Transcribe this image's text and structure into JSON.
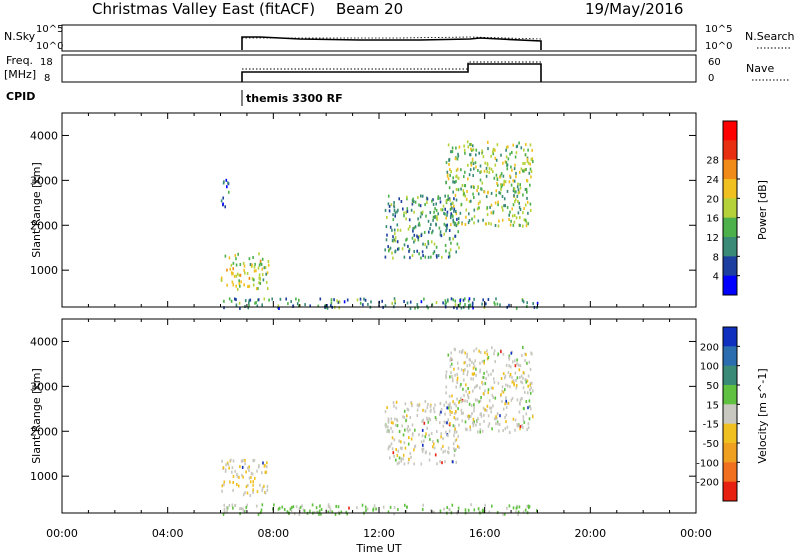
{
  "header": {
    "station": "Christmas Valley East (fitACF)",
    "beam": "Beam 20",
    "date": "19/May/2016"
  },
  "strips": {
    "nsky_label": "N.Sky",
    "nsky_ticks": [
      "10^5",
      "10^0"
    ],
    "nsearch_label": "N.Search",
    "freq_label": "Freq.",
    "freq_unit": "[MHz]",
    "freq_ticks": [
      "18",
      "8"
    ],
    "nave_label": "Nave",
    "nave_ticks": [
      "60",
      "0"
    ],
    "cpid_label": "CPID",
    "cpid_value": "themis 3300 RF",
    "nsearch_ticks": [
      "10^5",
      "10^0"
    ]
  },
  "chart_data": [
    {
      "type": "heatmap",
      "name": "power",
      "ylabel": "Slant Range [km]",
      "y_ticks": [
        "1000",
        "2000",
        "3000",
        "4000"
      ],
      "xlim_hours": [
        0,
        24
      ],
      "ylim_km": [
        180,
        4500
      ],
      "colorbar": {
        "label": "Power [dB]",
        "ticks": [
          "4",
          "8",
          "12",
          "16",
          "20",
          "24",
          "28"
        ],
        "colors": [
          "#0000ff",
          "#1d3f9f",
          "#3a8a78",
          "#4cb04b",
          "#b6d23a",
          "#f0c020",
          "#f08a18",
          "#e83010",
          "#ff0000"
        ]
      },
      "regions": [
        {
          "t0": 6.0,
          "t1": 7.8,
          "r0": 600,
          "r1": 1400,
          "value": 18
        },
        {
          "t0": 6.0,
          "t1": 6.3,
          "r0": 2400,
          "r1": 3100,
          "value": 8
        },
        {
          "t0": 14.5,
          "t1": 17.8,
          "r0": 2000,
          "r1": 3900,
          "value": 16
        },
        {
          "t0": 12.2,
          "t1": 15.0,
          "r0": 1300,
          "r1": 2700,
          "value": 12
        },
        {
          "t0": 6.0,
          "t1": 18.0,
          "r0": 180,
          "r1": 400,
          "value": 10
        }
      ]
    },
    {
      "type": "heatmap",
      "name": "velocity",
      "ylabel": "Slant Range [km]",
      "y_ticks": [
        "1000",
        "2000",
        "3000",
        "4000"
      ],
      "xlim_hours": [
        0,
        24
      ],
      "ylim_km": [
        180,
        4500
      ],
      "colorbar": {
        "label": "Velocity [m s^-1]",
        "ticks": [
          "200",
          "100",
          "50",
          "15",
          "-15",
          "-50",
          "-100",
          "-200"
        ],
        "colors": [
          "#1030c0",
          "#2a6eb0",
          "#3a8a78",
          "#60c040",
          "#c8c8c0",
          "#f0c020",
          "#f0a020",
          "#f07020",
          "#e82010"
        ]
      },
      "regions": [
        {
          "t0": 6.0,
          "t1": 7.8,
          "r0": 600,
          "r1": 1400,
          "value": -15
        },
        {
          "t0": 14.5,
          "t1": 17.8,
          "r0": 2000,
          "r1": 3900,
          "value": 0
        },
        {
          "t0": 12.2,
          "t1": 15.0,
          "r0": 1300,
          "r1": 2700,
          "value": 0
        },
        {
          "t0": 6.0,
          "t1": 18.0,
          "r0": 180,
          "r1": 400,
          "value": 20
        }
      ]
    }
  ],
  "x_axis": {
    "label": "Time UT",
    "ticks": [
      "00:00",
      "04:00",
      "08:00",
      "12:00",
      "16:00",
      "20:00",
      "00:00"
    ]
  }
}
